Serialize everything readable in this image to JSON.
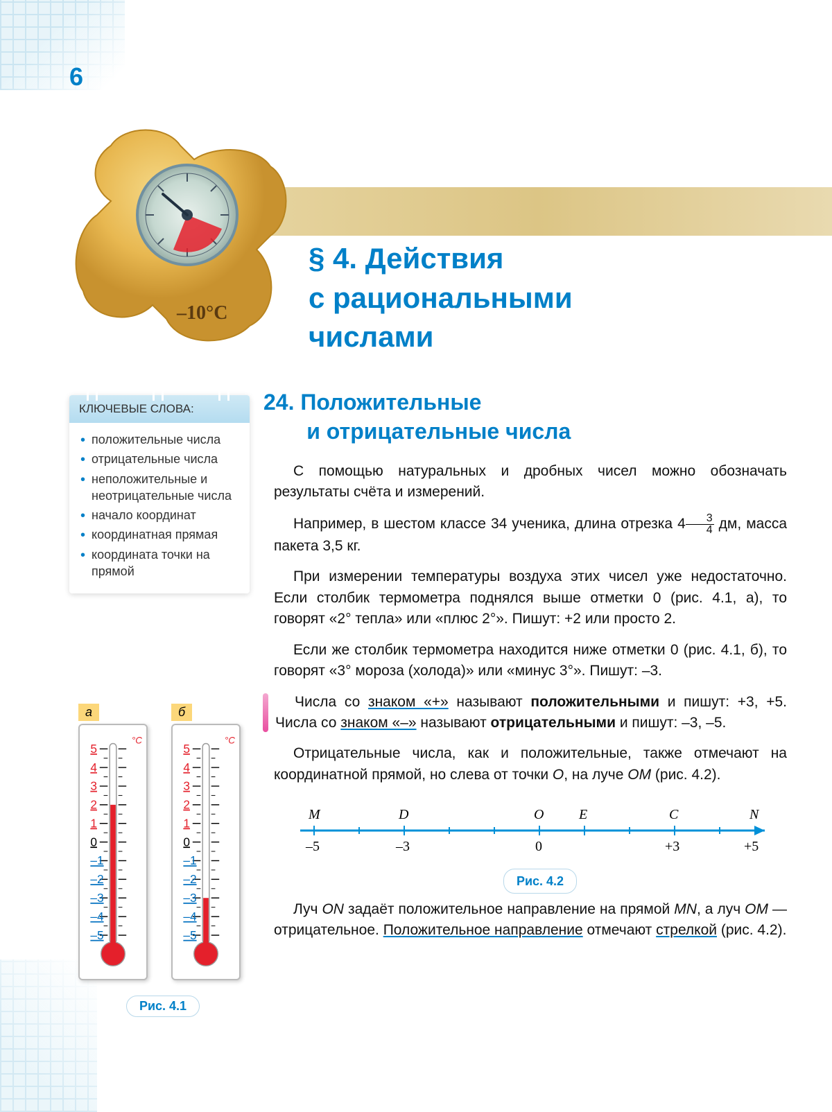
{
  "page_number": "6",
  "section_title_l1": "§ 4. Действия",
  "section_title_l2": "с рациональными",
  "section_title_l3": "числами",
  "subsection_num": "24.",
  "subsection_l1": "Положительные",
  "subsection_l2": "и  отрицательные  числа",
  "keywords_header": "КЛЮЧЕВЫЕ СЛОВА:",
  "keywords": [
    "положительные числа",
    "отрицательные числа",
    "неположительные и неотрицатель­ные числа",
    "начало координат",
    "координатная прямая",
    "координата точки на прямой"
  ],
  "para1": "С помощью натуральных и дробных чисел можно обозна­чать результаты счёта и измерений.",
  "para2_a": "Например, в шестом классе 34 ученика, длина отрезка ",
  "frac_whole": "4",
  "frac_num": "3",
  "frac_den": "4",
  "para2_b": " дм, масса пакета 3,5 кг.",
  "para3": "При измерении температуры воздуха этих чисел уже не­достаточно. Если столбик термометра поднялся выше отмет­ки 0 (рис. 4.1, а), то говорят «2° тепла» или «плюс 2°». Пишут: +2 или просто 2.",
  "para4": "Если же столбик термометра находится ниже отметки 0 (рис. 4.1, б), то говорят «3° мороза (холода)» или «минус 3°». Пишут: –3.",
  "defn_a": "Числа со ",
  "defn_b": "знаком «+»",
  "defn_c": " называют ",
  "defn_d": "положительными",
  "defn_e": " и пи­шут: +3, +5. Числа со ",
  "defn_f": "знаком «–»",
  "defn_g": " называют ",
  "defn_h": "отрицательными",
  "defn_i": " и пишут: –3, –5.",
  "para6_a": "Отрицательные числа, как и положительные, также отме­чают на координатной прямой, но слева от точки ",
  "para6_b": "О",
  "para6_c": ", на луче ",
  "para6_d": "ОМ",
  "para6_e": " (рис. 4.2).",
  "para7_a": "Луч ",
  "para7_b": "ON",
  "para7_c": " задаёт положительное направление на прямой ",
  "para7_d": "MN",
  "para7_e": ", а луч ",
  "para7_f": "OM",
  "para7_g": " — отрицательное. ",
  "para7_h": "Положительное направле­ние",
  "para7_i": " отмечают ",
  "para7_j": "стрелкой",
  "para7_k": " (рис. 4.2).",
  "fig41_caption": "Рис.  4.1",
  "fig42_caption": "Рис.  4.2",
  "therm_a_label": "а",
  "therm_b_label": "б",
  "colors": {
    "accent": "#0080c8",
    "banner": "#e2cd92",
    "puzzle": "#e8b851",
    "highlight_pink": "#e94fa0",
    "therm_red": "#e4202b",
    "grid": "#a9d4e8"
  },
  "thermometers": {
    "unit": "°C",
    "scale": [
      5,
      4,
      3,
      2,
      1,
      0,
      -1,
      -2,
      -3,
      -4,
      -5
    ],
    "a_value": 2,
    "b_value": -3
  },
  "numberline": {
    "points": [
      {
        "label": "M",
        "value": "–5",
        "x": 0
      },
      {
        "label": "D",
        "value": "–3",
        "x": 2
      },
      {
        "label": "O",
        "value": "0",
        "x": 5
      },
      {
        "label": "E",
        "value": "",
        "x": 6
      },
      {
        "label": "C",
        "value": "+3",
        "x": 8
      },
      {
        "label": "N",
        "value": "+5",
        "x": 10
      }
    ],
    "line_color": "#0090d8"
  },
  "puzzle_temp": "–10°C"
}
